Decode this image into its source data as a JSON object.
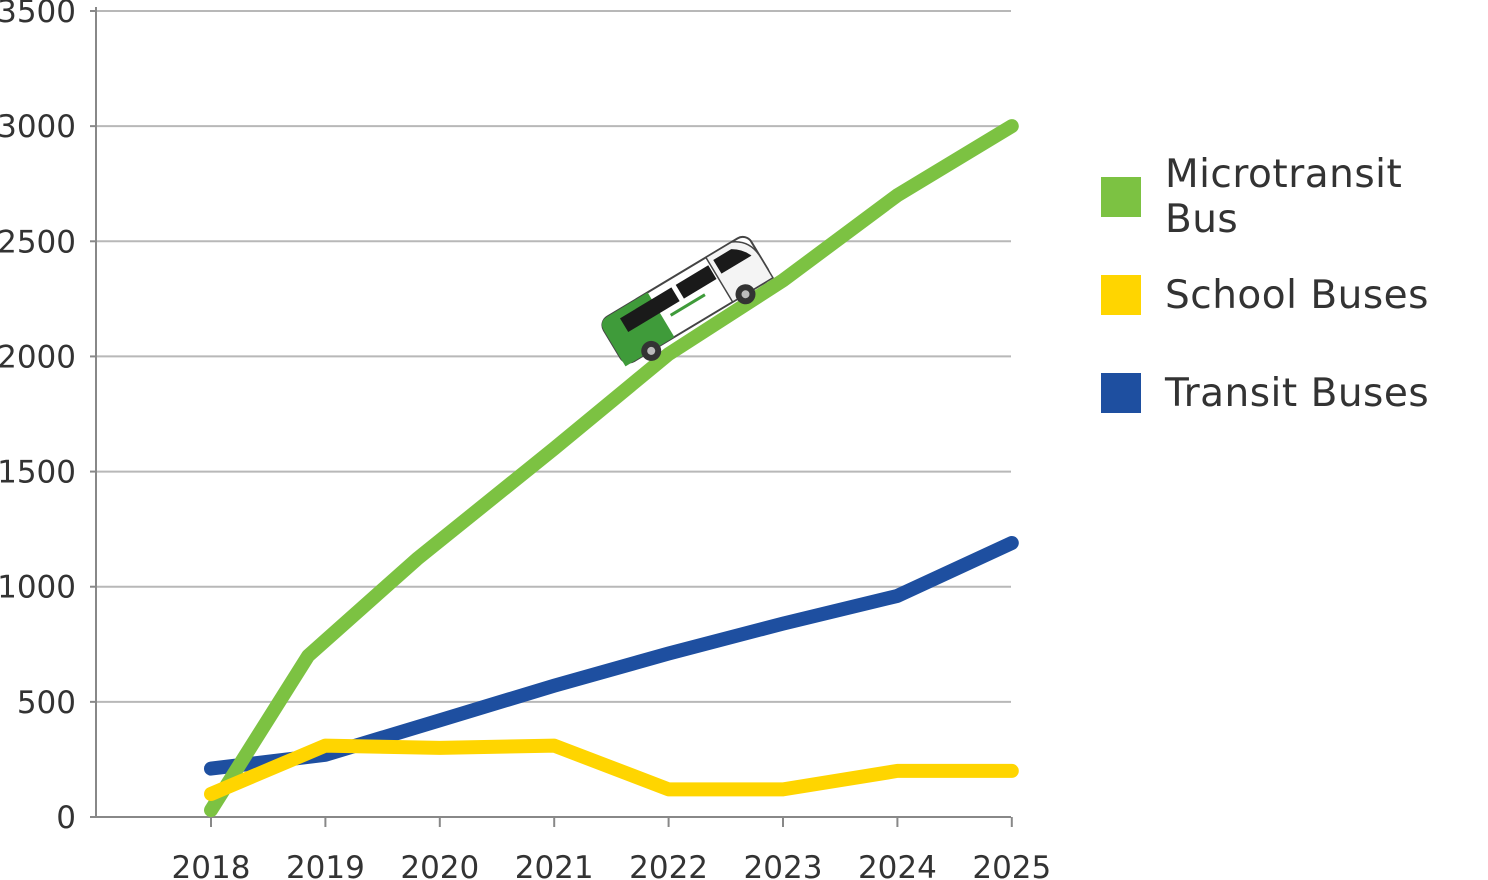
{
  "chart_data": {
    "type": "line",
    "categories": [
      "2018",
      "2019",
      "2020",
      "2021",
      "2022",
      "2023",
      "2024",
      "2025"
    ],
    "y_ticks": [
      "0",
      "500",
      "1000",
      "1500",
      "2000",
      "2500",
      "3000",
      "3500"
    ],
    "ylim": [
      0,
      3500
    ],
    "grid": true,
    "legend_position": "right",
    "title": "",
    "xlabel": "",
    "ylabel": "",
    "series": [
      {
        "name": "Microtransit Bus",
        "color": "#7cc242",
        "x": [
          2018,
          2018.85,
          2019.8,
          2021,
          2022,
          2023,
          2024,
          2025
        ],
        "values": [
          30,
          700,
          1120,
          1600,
          2010,
          2330,
          2700,
          3000
        ]
      },
      {
        "name": "School Buses",
        "color": "#ffd500",
        "x": [
          2018,
          2019,
          2020,
          2021,
          2022,
          2023,
          2024,
          2025
        ],
        "values": [
          100,
          310,
          300,
          310,
          120,
          120,
          200,
          200
        ]
      },
      {
        "name": "Transit Buses",
        "color": "#1e4fa0",
        "x": [
          2018,
          2019,
          2020,
          2021,
          2022,
          2023,
          2024,
          2025
        ],
        "values": [
          210,
          270,
          420,
          570,
          710,
          840,
          960,
          1190
        ]
      }
    ],
    "decoration": "van-icon"
  }
}
